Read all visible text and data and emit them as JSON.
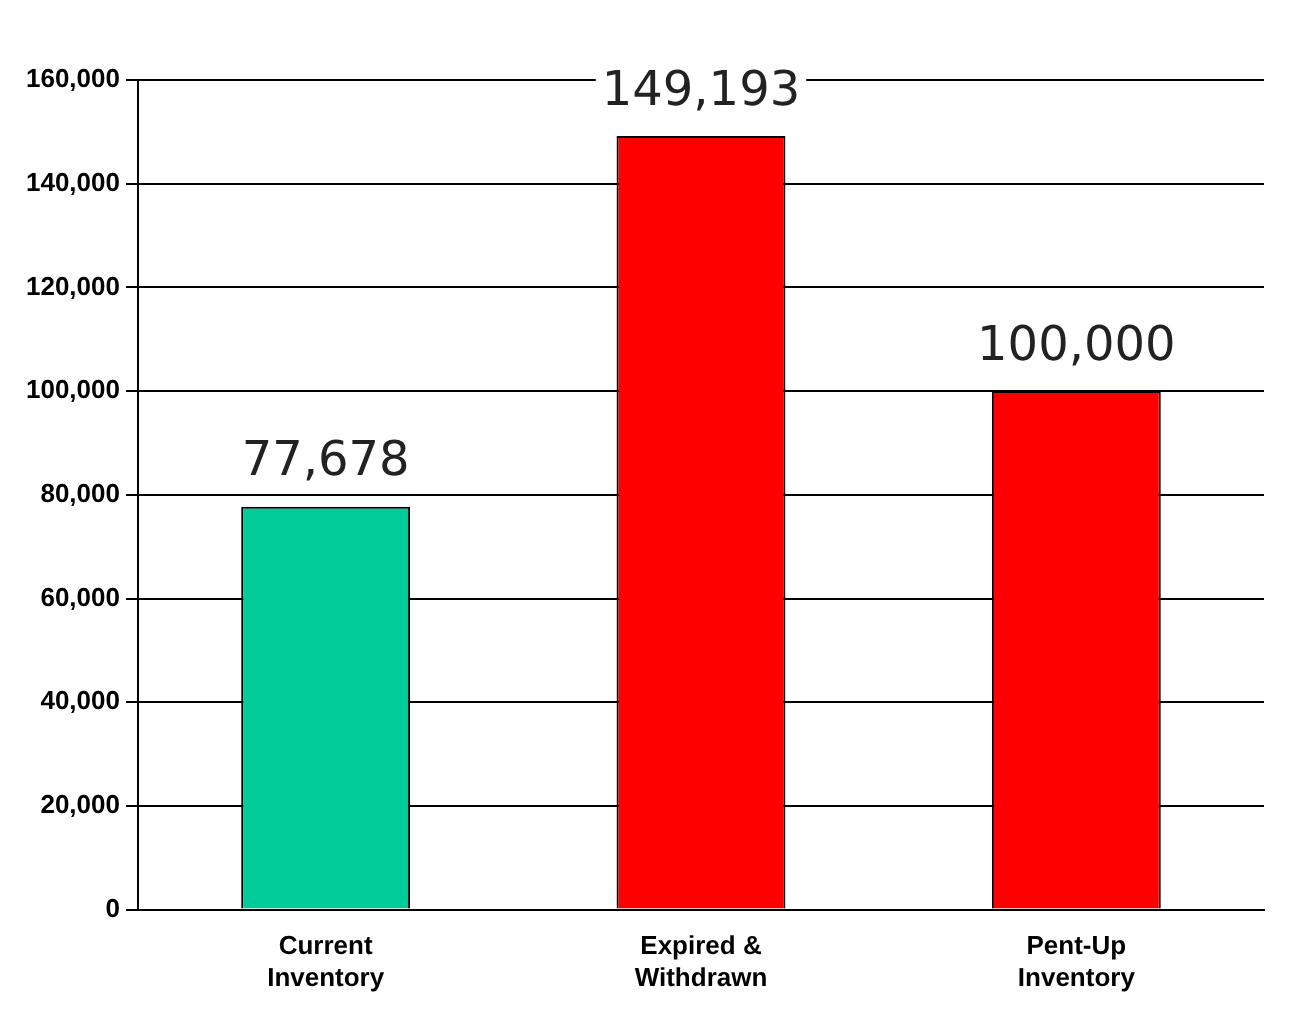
{
  "chart_data": {
    "type": "bar",
    "categories": [
      "Current Inventory",
      "Expired & Withdrawn",
      "Pent-Up Inventory"
    ],
    "values": [
      77678,
      149193,
      100000
    ],
    "colors": [
      "#00cc99",
      "#ff0000",
      "#ff0000"
    ],
    "value_labels": [
      "77,678",
      "149,193",
      "100,000"
    ],
    "ylim": [
      0,
      160000
    ],
    "yticks": [
      {
        "value": 0,
        "label": "0"
      },
      {
        "value": 20000,
        "label": "20,000"
      },
      {
        "value": 40000,
        "label": "40,000"
      },
      {
        "value": 60000,
        "label": "60,000"
      },
      {
        "value": 80000,
        "label": "80,000"
      },
      {
        "value": 100000,
        "label": "100,000"
      },
      {
        "value": 120000,
        "label": "120,000"
      },
      {
        "value": 140000,
        "label": "140,000"
      },
      {
        "value": 160000,
        "label": "160,000"
      }
    ],
    "grid": "y",
    "legend": false
  }
}
